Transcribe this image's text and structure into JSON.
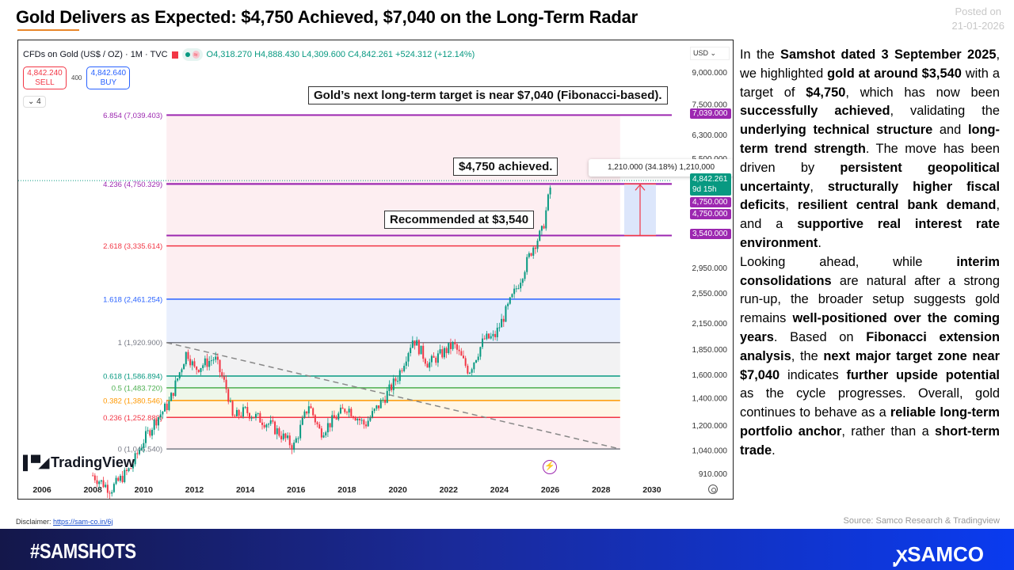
{
  "header": {
    "title": "Gold Delivers as Expected: $4,750 Achieved, $7,040 on the Long-Term Radar",
    "posted_label": "Posted on",
    "posted_date": "21-01-2026"
  },
  "chart_header": {
    "symbol": "CFDs on Gold (US$ / OZ) · 1M · TVC",
    "ohlc": "O4,318.270 H4,888.430 L4,309.600 C4,842.261 +524.312 (+12.14%)",
    "sell_price": "4,842.240",
    "sell_label": "SELL",
    "spread": "400",
    "buy_price": "4,842.640",
    "buy_label": "BUY",
    "collapse": "⌄ 4",
    "currency": "USD ⌄",
    "logo": "TradingView"
  },
  "annotations": {
    "target": "Gold’s next long-term target is near $7,040 (Fibonacci-based).",
    "achieved": "$4,750 achieved.",
    "recommended": "Recommended at $3,540",
    "measure": "1,210.000 (34.18%) 1,210,000"
  },
  "price_tags": {
    "t7039": "7,039.000",
    "last": "4,842.261",
    "countdown": "9d 15h",
    "t4750a": "4,750.000",
    "t4750b": "4,750.000",
    "t3540": "3,540.000"
  },
  "colors": {
    "up": "#089981",
    "down": "#f23645",
    "purple": "#9c27b0"
  },
  "chart_data": {
    "type": "candlestick",
    "title": "CFDs on Gold (US$ / OZ) · 1M · TVC",
    "y_scale": "log",
    "ylim": [
      910,
      9000
    ],
    "xlim": [
      2006,
      2031
    ],
    "y_ticks": [
      "9,000.000",
      "7,500.000",
      "6,300.000",
      "5,500.000",
      "2,950.000",
      "2,550.000",
      "2,150.000",
      "1,850.000",
      "1,600.000",
      "1,400.000",
      "1,200.000",
      "1,040.000",
      "910.000"
    ],
    "y_tick_values": [
      9000,
      7500,
      6300,
      5500,
      2950,
      2550,
      2150,
      1850,
      1600,
      1400,
      1200,
      1040,
      910
    ],
    "x_ticks": [
      "2006",
      "2008",
      "2010",
      "2012",
      "2014",
      "2016",
      "2018",
      "2020",
      "2022",
      "2024",
      "2026",
      "2028",
      "2030"
    ],
    "price_path": [
      [
        2008.0,
        900
      ],
      [
        2008.7,
        830
      ],
      [
        2009.5,
        940
      ],
      [
        2010.0,
        1100
      ],
      [
        2010.5,
        1240
      ],
      [
        2011.0,
        1360
      ],
      [
        2011.7,
        1830
      ],
      [
        2012.0,
        1650
      ],
      [
        2012.8,
        1760
      ],
      [
        2013.3,
        1450
      ],
      [
        2013.5,
        1250
      ],
      [
        2014.0,
        1300
      ],
      [
        2015.0,
        1200
      ],
      [
        2015.9,
        1060
      ],
      [
        2016.5,
        1350
      ],
      [
        2016.95,
        1150
      ],
      [
        2018.0,
        1330
      ],
      [
        2018.7,
        1200
      ],
      [
        2019.5,
        1410
      ],
      [
        2020.0,
        1580
      ],
      [
        2020.6,
        1970
      ],
      [
        2021.2,
        1700
      ],
      [
        2022.2,
        1900
      ],
      [
        2022.8,
        1630
      ],
      [
        2023.4,
        1960
      ],
      [
        2023.8,
        1980
      ],
      [
        2024.2,
        2250
      ],
      [
        2024.8,
        2740
      ],
      [
        2025.3,
        3300
      ],
      [
        2025.7,
        3650
      ],
      [
        2026.05,
        4842
      ]
    ],
    "fib_levels": [
      {
        "label": "6.854 (7,039.403)",
        "value": 7039.403,
        "color": "#9c27b0"
      },
      {
        "label": "4.236 (4,750.329)",
        "value": 4750.329,
        "color": "#9c27b0"
      },
      {
        "label": "2.618 (3,335.614)",
        "value": 3335.614,
        "color": "#f23645"
      },
      {
        "label": "1.618 (2,461.254)",
        "value": 2461.254,
        "color": "#2962ff"
      },
      {
        "label": "1 (1,920.900)",
        "value": 1920.9,
        "color": "#787b86"
      },
      {
        "label": "0.618 (1,586.894)",
        "value": 1586.894,
        "color": "#089981"
      },
      {
        "label": "0.5 (1,483.720)",
        "value": 1483.72,
        "color": "#4caf50"
      },
      {
        "label": "0.382 (1,380.546)",
        "value": 1380.546,
        "color": "#ff9800"
      },
      {
        "label": "0.236 (1,252.889)",
        "value": 1252.889,
        "color": "#f23645"
      },
      {
        "label": "0 (1,046.540)",
        "value": 1046.54,
        "color": "#787b86"
      }
    ],
    "horizontal_lines": [
      3540,
      4750
    ],
    "measurement": {
      "from": 3540,
      "to": 4750,
      "change": 1210,
      "pct": 34.18
    },
    "trendline": {
      "from": [
        2010.9,
        1920.9
      ],
      "to": [
        2028.75,
        1046.54
      ],
      "style": "dashed"
    }
  },
  "article": {
    "paragraphs": [
      [
        [
          "In the ",
          0
        ],
        [
          "Samshot dated 3 September 2025",
          1
        ],
        [
          ", we highlighted ",
          0
        ],
        [
          "gold at around $3,540",
          1
        ],
        [
          " with a target of ",
          0
        ],
        [
          "$4,750",
          1
        ],
        [
          ", which has now been ",
          0
        ],
        [
          "successfully achieved",
          1
        ],
        [
          ", validating the ",
          0
        ],
        [
          "underlying technical structure",
          1
        ],
        [
          " and ",
          0
        ],
        [
          "long-term trend strength",
          1
        ],
        [
          ". The move has been driven by ",
          0
        ],
        [
          "persistent geopolitical uncertainty",
          1
        ],
        [
          ", ",
          0
        ],
        [
          "structurally higher fiscal deficits",
          1
        ],
        [
          ", ",
          0
        ],
        [
          "resilient central bank demand",
          1
        ],
        [
          ", and a ",
          0
        ],
        [
          "supportive real interest rate environment",
          1
        ],
        [
          ".",
          0
        ]
      ],
      [
        [
          "Looking ahead, while ",
          0
        ],
        [
          "interim consolidations",
          1
        ],
        [
          " are natural after a strong run-up, the broader setup suggests gold remains ",
          0
        ],
        [
          "well-positioned over the coming years",
          1
        ],
        [
          ". Based on ",
          0
        ],
        [
          "Fibonacci extension analysis",
          1
        ],
        [
          ", the ",
          0
        ],
        [
          "next major target zone near $7,040",
          1
        ],
        [
          " indicates ",
          0
        ],
        [
          "further upside potential",
          1
        ],
        [
          " as the cycle progresses. Overall, gold continues to behave as a ",
          0
        ],
        [
          "reliable long-term portfolio anchor",
          1
        ],
        [
          ", rather than a ",
          0
        ],
        [
          "short-term trade",
          1
        ],
        [
          ".",
          0
        ]
      ]
    ]
  },
  "footer": {
    "disclaimer_label": "Disclaimer:",
    "disclaimer_link": "https://sam-co.in/6j",
    "source": "Source: Samco Research & Tradingview",
    "hashtag": "#SAMSHOTS",
    "brand": "SAMCO",
    "brand_mark": "ꭙ"
  }
}
